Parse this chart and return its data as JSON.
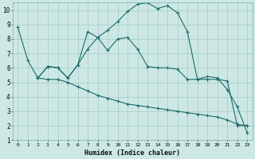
{
  "title": "",
  "xlabel": "Humidex (Indice chaleur)",
  "ylabel": "",
  "bg_color": "#cde8e4",
  "line_color": "#1a6b6b",
  "grid_color": "#aaceca",
  "xlim": [
    -0.5,
    23.5
  ],
  "ylim": [
    1,
    10.5
  ],
  "xticks": [
    0,
    1,
    2,
    3,
    4,
    5,
    6,
    7,
    8,
    9,
    10,
    11,
    12,
    13,
    14,
    15,
    16,
    17,
    18,
    19,
    20,
    21,
    22,
    23
  ],
  "yticks": [
    1,
    2,
    3,
    4,
    5,
    6,
    7,
    8,
    9,
    10
  ],
  "line1_x": [
    0,
    1,
    2,
    3,
    4,
    5,
    6,
    7,
    8,
    9,
    10,
    11,
    12,
    13,
    14,
    15,
    16,
    17,
    18,
    19,
    20,
    21,
    22,
    23
  ],
  "line1_y": [
    8.8,
    6.5,
    5.3,
    6.1,
    6.0,
    5.3,
    6.2,
    8.5,
    8.1,
    8.6,
    9.2,
    9.9,
    10.4,
    10.5,
    10.1,
    10.3,
    9.8,
    8.5,
    5.2,
    5.4,
    5.3,
    4.5,
    3.3,
    1.5
  ],
  "line2_x": [
    2,
    3,
    4,
    5,
    6,
    7,
    8,
    9,
    10,
    11,
    12,
    13,
    14,
    15,
    16,
    17,
    18,
    19,
    20,
    21,
    22,
    23
  ],
  "line2_y": [
    5.3,
    6.1,
    6.0,
    5.3,
    6.2,
    7.3,
    8.1,
    7.2,
    8.0,
    8.1,
    7.3,
    6.1,
    6.0,
    6.0,
    5.9,
    5.2,
    5.2,
    5.2,
    5.2,
    5.1,
    2.0,
    2.0
  ],
  "line3_x": [
    2,
    3,
    4,
    5,
    6,
    7,
    8,
    9,
    10,
    11,
    12,
    13,
    14,
    15,
    16,
    17,
    18,
    19,
    20,
    21,
    22,
    23
  ],
  "line3_y": [
    5.3,
    5.2,
    5.2,
    5.0,
    4.7,
    4.4,
    4.1,
    3.9,
    3.7,
    3.5,
    3.4,
    3.3,
    3.2,
    3.1,
    3.0,
    2.9,
    2.8,
    2.7,
    2.6,
    2.4,
    2.1,
    2.0
  ]
}
